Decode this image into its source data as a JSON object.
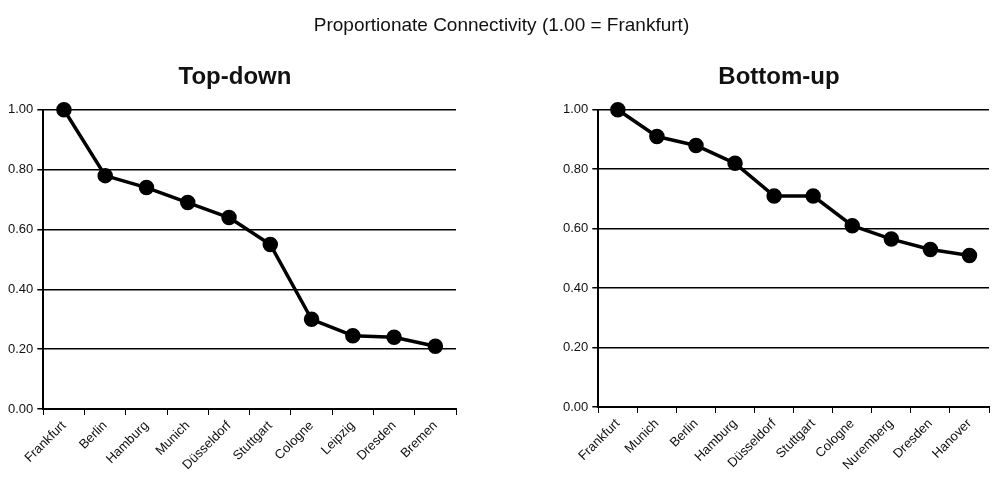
{
  "chart_data": [
    {
      "type": "other",
      "title": "Proportionate Connectivity (1.00 = Frankfurt)"
    },
    {
      "type": "line",
      "title": "Top-down",
      "categories": [
        "Frankfurt",
        "Berlin",
        "Hamburg",
        "Munich",
        "Düsseldorf",
        "Stuttgart",
        "Cologne",
        "Leipzig",
        "Dresden",
        "Bremen"
      ],
      "series": [
        {
          "color": "#000000",
          "values": [
            1.0,
            0.78,
            0.74,
            0.69,
            0.64,
            0.55,
            0.3,
            0.245,
            0.24,
            0.21
          ]
        }
      ],
      "ylim": [
        0,
        1
      ],
      "yticks": [
        {
          "value": 0,
          "label": "0.00"
        },
        {
          "value": 0.2,
          "label": "0.20"
        },
        {
          "value": 0.4,
          "label": "0.40"
        },
        {
          "value": 0.6,
          "label": "0.60"
        },
        {
          "value": 0.8,
          "label": "0.80"
        },
        {
          "value": 1,
          "label": "1.00"
        }
      ],
      "grid": "y",
      "legend": false,
      "marker": "circle",
      "line_style": "solid"
    },
    {
      "type": "line",
      "title": "Bottom-up",
      "categories": [
        "Frankfurt",
        "Munich",
        "Berlin",
        "Hamburg",
        "Düsseldorf",
        "Stuttgart",
        "Cologne",
        "Nuremberg",
        "Dresden",
        "Hanover"
      ],
      "series": [
        {
          "color": "#000000",
          "values": [
            1.0,
            0.91,
            0.88,
            0.82,
            0.71,
            0.71,
            0.61,
            0.565,
            0.53,
            0.51
          ]
        }
      ],
      "ylim": [
        0,
        1
      ],
      "yticks": [
        {
          "value": 0,
          "label": "0.00"
        },
        {
          "value": 0.2,
          "label": "0.20"
        },
        {
          "value": 0.4,
          "label": "0.40"
        },
        {
          "value": 0.6,
          "label": "0.60"
        },
        {
          "value": 0.8,
          "label": "0.80"
        },
        {
          "value": 1,
          "label": "1.00"
        }
      ],
      "grid": "y",
      "legend": false,
      "marker": "circle",
      "line_style": "solid"
    }
  ]
}
